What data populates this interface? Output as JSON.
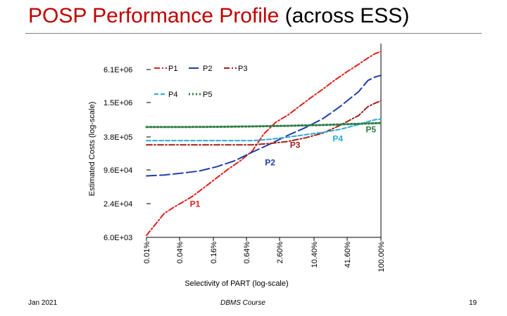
{
  "slide": {
    "title_main": "POSP Performance Profile",
    "title_suffix": " (across ESS)",
    "footer_left": "Jan 2021",
    "footer_center": "DBMS Course",
    "footer_right": "19"
  },
  "chart_data": {
    "type": "line",
    "title": "",
    "xlabel": "Selectivity of PART (log-scale)",
    "ylabel": "Estimated Costs (log-scale)",
    "x_ticks": [
      "0.01%",
      "0.04%",
      "0.16%",
      "0.64%",
      "2.60%",
      "10.40%",
      "41.60%",
      "100.00%"
    ],
    "y_ticks": [
      "6.0E+03",
      "2.4E+04",
      "9.6E+04",
      "3.8E+05",
      "1.5E+06",
      "6.1E+06"
    ],
    "y_tick_values": [
      6000,
      24000,
      96000,
      380000,
      1500000,
      6100000
    ],
    "grid": false,
    "legend_position": "top",
    "series": [
      {
        "name": "P1",
        "label": "P1",
        "color": "#e0201b",
        "dash": "8 3 2 3",
        "x": [
          0.01,
          0.015,
          0.02,
          0.03,
          0.04,
          0.06,
          0.1,
          0.16,
          0.25,
          0.4,
          0.64,
          1.0,
          1.6,
          2.6,
          4,
          6.5,
          10.4,
          16,
          26,
          41.6,
          60,
          80,
          100
        ],
        "y": [
          6500,
          11000,
          16000,
          21000,
          25000,
          32000,
          48000,
          70000,
          100000,
          140000,
          210000,
          420000,
          680000,
          920000,
          1300000,
          1900000,
          2700000,
          3800000,
          5400000,
          7400000,
          9600000,
          11500000,
          12500000
        ]
      },
      {
        "name": "P2",
        "label": "P2",
        "color": "#1f3fa8",
        "dash": "14 5",
        "x": [
          0.01,
          0.02,
          0.04,
          0.08,
          0.16,
          0.32,
          0.64,
          1.3,
          2.6,
          5.2,
          10.4,
          20,
          41.6,
          60,
          80,
          100
        ],
        "y": [
          75000,
          78000,
          84000,
          92000,
          110000,
          140000,
          200000,
          280000,
          400000,
          550000,
          800000,
          1300000,
          2400000,
          3800000,
          4400000,
          4700000
        ]
      },
      {
        "name": "P3",
        "label": "P3",
        "color": "#a0201b",
        "dash": "8 3 2 3",
        "x": [
          0.01,
          0.04,
          0.16,
          0.64,
          1.3,
          2.6,
          5.2,
          10.4,
          20,
          41.6,
          60,
          80,
          100
        ],
        "y": [
          270000,
          270000,
          270000,
          270000,
          285000,
          310000,
          360000,
          440000,
          600000,
          900000,
          1300000,
          1500000,
          1650000
        ]
      },
      {
        "name": "P4",
        "label": "P4",
        "color": "#2ea8d8",
        "dash": "6 3",
        "x": [
          0.01,
          0.04,
          0.16,
          0.64,
          1.3,
          2.6,
          5.2,
          10.4,
          20,
          41.6,
          60,
          80,
          100
        ],
        "y": [
          320000,
          320000,
          320000,
          320000,
          340000,
          370000,
          410000,
          450000,
          510000,
          620000,
          700000,
          760000,
          780000
        ]
      },
      {
        "name": "P5",
        "label": "P5",
        "color": "#2e7d45",
        "dash": "2 3",
        "x": [
          0.01,
          0.04,
          0.16,
          0.64,
          2.6,
          10.4,
          41.6,
          100
        ],
        "y": [
          560000,
          560000,
          565000,
          575000,
          590000,
          610000,
          640000,
          660000
        ]
      }
    ],
    "annotations": [
      {
        "text": "P1",
        "color": "#e0201b",
        "x": 0.055,
        "y": 21000
      },
      {
        "text": "P2",
        "color": "#1f3fa8",
        "x": 1.05,
        "y": 115000
      },
      {
        "text": "P3",
        "color": "#a0201b",
        "x": 2.8,
        "y": 240000
      },
      {
        "text": "P4",
        "color": "#2ea8d8",
        "x": 15,
        "y": 310000
      },
      {
        "text": "P5",
        "color": "#2e7d45",
        "x": 55,
        "y": 450000
      }
    ]
  }
}
